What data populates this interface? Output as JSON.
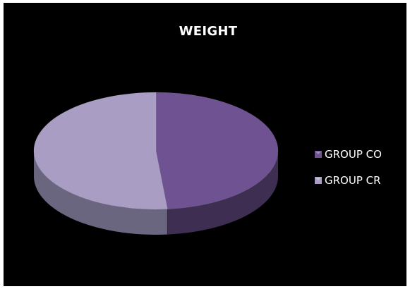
{
  "chart_data": {
    "type": "pie",
    "title": "WEIGHT",
    "three_d": true,
    "legend_position": "right",
    "background": "#000000",
    "slices": [
      {
        "label": "GROUP CO",
        "value": 48.5,
        "color": "#6e5292",
        "side_color": "#3e2e52"
      },
      {
        "label": "GROUP CR",
        "value": 51.5,
        "color": "#a99dc4",
        "side_color": "#6b6680"
      }
    ]
  }
}
